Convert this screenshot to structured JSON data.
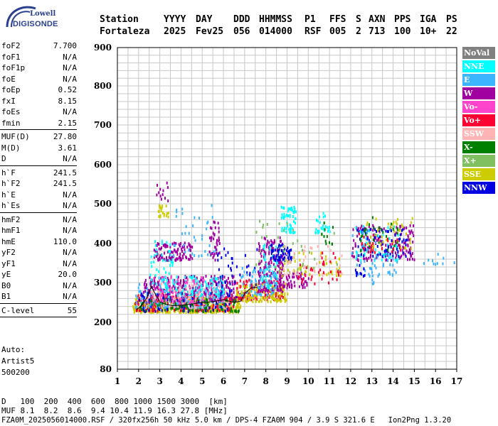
{
  "logo": {
    "line1": "Lowell",
    "line2": "DIGISONDE"
  },
  "header": {
    "labels": [
      "Station",
      "YYYY",
      "DAY",
      "DDD",
      "HHMMSS",
      "P1",
      "FFS",
      "S",
      "AXN",
      "PPS",
      "IGA",
      "PS"
    ],
    "values": [
      "Fortaleza",
      "2025",
      "Fev25",
      "056",
      "014000",
      "RSF",
      "005",
      "2",
      "713",
      "100",
      "10+",
      "22"
    ]
  },
  "params": {
    "group1": [
      {
        "label": "foF2",
        "value": "7.700"
      },
      {
        "label": "foF1",
        "value": "N/A"
      },
      {
        "label": "foF1p",
        "value": "N/A"
      },
      {
        "label": "foE",
        "value": "N/A"
      },
      {
        "label": "foEp",
        "value": "0.52"
      },
      {
        "label": "fxI",
        "value": "8.15"
      },
      {
        "label": "foEs",
        "value": "N/A"
      },
      {
        "label": "fmin",
        "value": "2.15"
      }
    ],
    "group2": [
      {
        "label": "MUF(D)",
        "value": "27.80"
      },
      {
        "label": "M(D)",
        "value": "3.61"
      },
      {
        "label": "D",
        "value": "N/A"
      }
    ],
    "group3": [
      {
        "label": "h`F",
        "value": "241.5"
      },
      {
        "label": "h`F2",
        "value": "241.5"
      },
      {
        "label": "h`E",
        "value": "N/A"
      },
      {
        "label": "h`Es",
        "value": "N/A"
      }
    ],
    "group4": [
      {
        "label": "hmF2",
        "value": "N/A"
      },
      {
        "label": "hmF1",
        "value": "N/A"
      },
      {
        "label": "hmE",
        "value": "110.0"
      },
      {
        "label": "yF2",
        "value": "N/A"
      },
      {
        "label": "yF1",
        "value": "N/A"
      },
      {
        "label": "yE",
        "value": "20.0"
      },
      {
        "label": "B0",
        "value": "N/A"
      },
      {
        "label": "B1",
        "value": "N/A"
      }
    ],
    "group5": [
      {
        "label": "C-level",
        "value": "55"
      }
    ]
  },
  "auto": {
    "line1": "Auto:",
    "line2": "Artist5",
    "line3": "500200"
  },
  "legend": [
    {
      "name": "NoVal",
      "color": "#808080"
    },
    {
      "name": "NNE",
      "color": "#00ffff"
    },
    {
      "name": "E",
      "color": "#3cb4ff"
    },
    {
      "name": "W",
      "color": "#a000a0"
    },
    {
      "name": "Vo-",
      "color": "#ff44cc"
    },
    {
      "name": "Vo+",
      "color": "#ff0033"
    },
    {
      "name": "SSW",
      "color": "#ffb4b4"
    },
    {
      "name": "X-",
      "color": "#008000"
    },
    {
      "name": "X+",
      "color": "#80c060"
    },
    {
      "name": "SSE",
      "color": "#cccc00"
    },
    {
      "name": "NNW",
      "color": "#0000e0"
    }
  ],
  "footer": {
    "d_label": "D",
    "d_values": [
      "100",
      "200",
      "400",
      "600",
      "800",
      "1000",
      "1500",
      "3000",
      "[km]"
    ],
    "muf_label": "MUF",
    "muf_values": [
      "8.1",
      "8.2",
      "8.6",
      "9.4",
      "10.4",
      "11.9",
      "16.3",
      "27.8",
      "[MHz]"
    ],
    "file_line": "FZA0M_2025056014000.RSF / 320fx256h 50 kHz 5.0 km / DPS-4 FZA0M 904 / 3.9 S 321.6 E   Ion2Png 1.3.20"
  },
  "chart_data": {
    "type": "scatter",
    "title": "",
    "xlabel": "",
    "ylabel": "",
    "xlim": [
      1,
      17
    ],
    "ylim": [
      80,
      900
    ],
    "x_ticks": [
      1,
      2,
      3,
      4,
      5,
      6,
      7,
      8,
      9,
      10,
      11,
      12,
      13,
      14,
      15,
      16,
      17
    ],
    "y_ticks": [
      80,
      200,
      300,
      400,
      500,
      600,
      700,
      800,
      900
    ],
    "grid": true,
    "legend_position": "right",
    "scale_note": "virtual height axis is nonlinear (compressed below 200 km)",
    "trace": {
      "name": "virtual height profile",
      "color": "#000000",
      "points": [
        [
          1.9,
          232
        ],
        [
          2.1,
          240
        ],
        [
          2.4,
          262
        ],
        [
          2.6,
          290
        ],
        [
          2.8,
          270
        ],
        [
          3.0,
          252
        ],
        [
          3.3,
          245
        ],
        [
          3.6,
          242
        ],
        [
          4.0,
          243
        ],
        [
          4.5,
          246
        ],
        [
          5.0,
          250
        ],
        [
          5.5,
          252
        ],
        [
          6.0,
          257
        ],
        [
          6.5,
          250
        ],
        [
          6.8,
          253
        ],
        [
          7.0,
          272
        ],
        [
          7.3,
          287
        ],
        [
          7.6,
          288
        ]
      ]
    },
    "clusters": [
      {
        "series": "SSE",
        "x": [
          1.7,
          6.8
        ],
        "y": [
          228,
          268
        ],
        "n": 420
      },
      {
        "series": "Vo+",
        "x": [
          1.8,
          6.5
        ],
        "y": [
          232,
          275
        ],
        "n": 260
      },
      {
        "series": "E",
        "x": [
          1.8,
          6.0
        ],
        "y": [
          240,
          300
        ],
        "n": 240
      },
      {
        "series": "W",
        "x": [
          2.2,
          6.6
        ],
        "y": [
          255,
          320
        ],
        "n": 260
      },
      {
        "series": "NNE",
        "x": [
          3.0,
          6.0
        ],
        "y": [
          265,
          320
        ],
        "n": 110
      },
      {
        "series": "X-",
        "x": [
          2.0,
          6.7
        ],
        "y": [
          230,
          262
        ],
        "n": 110
      },
      {
        "series": "SSW",
        "x": [
          2.3,
          6.3
        ],
        "y": [
          240,
          300
        ],
        "n": 90
      },
      {
        "series": "NNW",
        "x": [
          2.0,
          6.5
        ],
        "y": [
          230,
          280
        ],
        "n": 50
      },
      {
        "series": "Vo-",
        "x": [
          2.5,
          6.0
        ],
        "y": [
          250,
          320
        ],
        "n": 70
      },
      {
        "series": "W",
        "x": [
          2.7,
          4.5
        ],
        "y": [
          360,
          405
        ],
        "n": 110
      },
      {
        "series": "NNE",
        "x": [
          2.5,
          3.6
        ],
        "y": [
          300,
          410
        ],
        "n": 40
      },
      {
        "series": "E",
        "x": [
          3.5,
          5.6
        ],
        "y": [
          370,
          500
        ],
        "n": 40
      },
      {
        "series": "W",
        "x": [
          5.3,
          5.8
        ],
        "y": [
          360,
          460
        ],
        "n": 35
      },
      {
        "series": "SSE",
        "x": [
          2.9,
          3.4
        ],
        "y": [
          470,
          500
        ],
        "n": 22
      },
      {
        "series": "W",
        "x": [
          2.8,
          3.4
        ],
        "y": [
          510,
          560
        ],
        "n": 12
      },
      {
        "series": "NNW",
        "x": [
          5.6,
          7.6
        ],
        "y": [
          260,
          400
        ],
        "n": 55
      },
      {
        "series": "Vo+",
        "x": [
          6.6,
          8.8
        ],
        "y": [
          260,
          310
        ],
        "n": 140
      },
      {
        "series": "SSE",
        "x": [
          6.6,
          9.0
        ],
        "y": [
          255,
          300
        ],
        "n": 120
      },
      {
        "series": "W",
        "x": [
          7.6,
          8.8
        ],
        "y": [
          280,
          420
        ],
        "n": 170
      },
      {
        "series": "NNE",
        "x": [
          7.8,
          8.6
        ],
        "y": [
          290,
          400
        ],
        "n": 50
      },
      {
        "series": "E",
        "x": [
          6.8,
          8.5
        ],
        "y": [
          270,
          340
        ],
        "n": 60
      },
      {
        "series": "NNW",
        "x": [
          8.2,
          9.2
        ],
        "y": [
          360,
          400
        ],
        "n": 60
      },
      {
        "series": "W",
        "x": [
          8.6,
          10.0
        ],
        "y": [
          290,
          330
        ],
        "n": 60
      },
      {
        "series": "NNE",
        "x": [
          8.7,
          9.4
        ],
        "y": [
          430,
          500
        ],
        "n": 60
      },
      {
        "series": "NNE",
        "x": [
          10.3,
          11.0
        ],
        "y": [
          430,
          480
        ],
        "n": 25
      },
      {
        "series": "SSE",
        "x": [
          8.5,
          11.5
        ],
        "y": [
          320,
          380
        ],
        "n": 50
      },
      {
        "series": "X+",
        "x": [
          7.5,
          11.5
        ],
        "y": [
          330,
          460
        ],
        "n": 40
      },
      {
        "series": "SSW",
        "x": [
          8.8,
          11.6
        ],
        "y": [
          320,
          400
        ],
        "n": 40
      },
      {
        "series": "Vo+",
        "x": [
          9.5,
          11.5
        ],
        "y": [
          300,
          380
        ],
        "n": 35
      },
      {
        "series": "X-",
        "x": [
          10.6,
          11.2
        ],
        "y": [
          400,
          480
        ],
        "n": 12
      },
      {
        "series": "W",
        "x": [
          12.0,
          15.0
        ],
        "y": [
          360,
          450
        ],
        "n": 150
      },
      {
        "series": "NNE",
        "x": [
          12.2,
          14.3
        ],
        "y": [
          360,
          450
        ],
        "n": 60
      },
      {
        "series": "NNW",
        "x": [
          12.2,
          14.8
        ],
        "y": [
          370,
          440
        ],
        "n": 70
      },
      {
        "series": "E",
        "x": [
          12.0,
          14.2
        ],
        "y": [
          320,
          440
        ],
        "n": 50
      },
      {
        "series": "SSE",
        "x": [
          12.5,
          15.1
        ],
        "y": [
          390,
          470
        ],
        "n": 40
      },
      {
        "series": "X-",
        "x": [
          12.4,
          14.2
        ],
        "y": [
          380,
          470
        ],
        "n": 30
      },
      {
        "series": "Vo+",
        "x": [
          12.2,
          14.5
        ],
        "y": [
          380,
          430
        ],
        "n": 25
      },
      {
        "series": "NNW",
        "x": [
          12.2,
          12.8
        ],
        "y": [
          320,
          350
        ],
        "n": 12
      },
      {
        "series": "E",
        "x": [
          15.2,
          17.0
        ],
        "y": [
          350,
          380
        ],
        "n": 10
      },
      {
        "series": "E",
        "x": [
          12.8,
          13.6
        ],
        "y": [
          300,
          330
        ],
        "n": 8
      }
    ]
  }
}
